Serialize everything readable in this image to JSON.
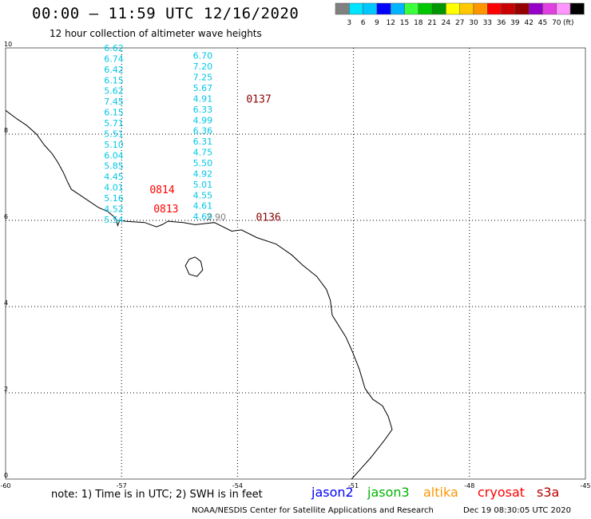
{
  "header": {
    "title": "00:00 – 11:59 UTC 12/16/2020",
    "subtitle": "12 hour collection of altimeter wave heights"
  },
  "legend": {
    "labels": [
      "3",
      "6",
      "9",
      "12",
      "15",
      "18",
      "21",
      "24",
      "27",
      "30",
      "33",
      "36",
      "39",
      "42",
      "45",
      "70"
    ],
    "unit": "(ft)",
    "colors": [
      "#808080",
      "#00e5ff",
      "#00c8ff",
      "#0000ff",
      "#00b4ff",
      "#3cff3c",
      "#00c800",
      "#009600",
      "#ffff00",
      "#ffc800",
      "#ff9600",
      "#ff0000",
      "#c80000",
      "#960000",
      "#9600c8",
      "#e040e0",
      "#ff96ff",
      "#000000"
    ]
  },
  "axes": {
    "x_ticks": [
      "-60",
      "-57",
      "-54",
      "-51",
      "-48",
      "-45"
    ],
    "y_ticks": [
      "0",
      "2",
      "4",
      "6",
      "8",
      "10"
    ],
    "x_values": [
      -60,
      -57,
      -54,
      -51,
      -48,
      -45
    ],
    "y_values": [
      0,
      2,
      4,
      6,
      8,
      10
    ]
  },
  "tracks": [
    {
      "lon": -57.2,
      "lat_start": 10.0,
      "lat_step": -0.2487,
      "color": "#00c8e6",
      "values": [
        "6.62",
        "6.74",
        "6.42",
        "6.15",
        "5.62",
        "7.45",
        "6.15",
        "5.71",
        "5.51",
        "5.10",
        "6.04",
        "5.85",
        "4.45",
        "4.01",
        "5.16",
        "4.52",
        "5.54"
      ]
    },
    {
      "lon": -54.9,
      "lat_start": 9.82,
      "lat_step": -0.2487,
      "color": "#00c8e6",
      "values": [
        "6.70",
        "7.20",
        "7.25",
        "5.67",
        "4.91",
        "6.33",
        "4.99",
        "6.36",
        "6.31",
        "4.75",
        "5.50",
        "4.92",
        "5.01",
        "4.55",
        "4.61",
        "4.69"
      ]
    }
  ],
  "gray_value": {
    "text": "2.90",
    "lon": -54.55,
    "lat": 6.08,
    "color": "#808080"
  },
  "pass_labels": [
    {
      "text": "0137",
      "lon": -53.45,
      "lat": 8.82,
      "color": "#8b0000"
    },
    {
      "text": "0814",
      "lon": -55.95,
      "lat": 6.72,
      "color": "#ff0000"
    },
    {
      "text": "0813",
      "lon": -55.85,
      "lat": 6.28,
      "color": "#ff0000"
    },
    {
      "text": "0136",
      "lon": -53.2,
      "lat": 6.08,
      "color": "#8b0000"
    }
  ],
  "coastline": [
    [
      -60.0,
      8.55
    ],
    [
      -59.7,
      8.35
    ],
    [
      -59.45,
      8.2
    ],
    [
      -59.2,
      8.0
    ],
    [
      -59.0,
      7.75
    ],
    [
      -58.8,
      7.55
    ],
    [
      -58.65,
      7.35
    ],
    [
      -58.5,
      7.1
    ],
    [
      -58.4,
      6.9
    ],
    [
      -58.3,
      6.72
    ],
    [
      -58.1,
      6.6
    ],
    [
      -57.85,
      6.45
    ],
    [
      -57.6,
      6.3
    ],
    [
      -57.35,
      6.2
    ],
    [
      -57.15,
      6.05
    ],
    [
      -57.1,
      5.88
    ],
    [
      -57.05,
      6.0
    ],
    [
      -56.9,
      5.98
    ],
    [
      -56.4,
      5.95
    ],
    [
      -56.1,
      5.85
    ],
    [
      -55.95,
      5.9
    ],
    [
      -55.8,
      5.98
    ],
    [
      -55.4,
      5.95
    ],
    [
      -55.1,
      5.9
    ],
    [
      -54.6,
      5.95
    ],
    [
      -54.15,
      5.75
    ],
    [
      -53.9,
      5.78
    ],
    [
      -53.5,
      5.6
    ],
    [
      -53.0,
      5.45
    ],
    [
      -52.6,
      5.2
    ],
    [
      -52.3,
      4.95
    ],
    [
      -51.95,
      4.7
    ],
    [
      -51.7,
      4.4
    ],
    [
      -51.6,
      4.15
    ],
    [
      -51.55,
      3.8
    ],
    [
      -51.2,
      3.3
    ],
    [
      -51.05,
      3.0
    ],
    [
      -50.85,
      2.55
    ],
    [
      -50.7,
      2.1
    ],
    [
      -50.5,
      1.85
    ],
    [
      -50.25,
      1.7
    ],
    [
      -50.1,
      1.45
    ],
    [
      -50.0,
      1.15
    ],
    [
      -50.2,
      0.9
    ],
    [
      -50.55,
      0.5
    ],
    [
      -50.85,
      0.2
    ],
    [
      -51.05,
      0.0
    ]
  ],
  "island": [
    [
      -55.35,
      4.95
    ],
    [
      -55.25,
      5.1
    ],
    [
      -55.1,
      5.15
    ],
    [
      -54.95,
      5.05
    ],
    [
      -54.9,
      4.85
    ],
    [
      -55.05,
      4.7
    ],
    [
      -55.25,
      4.75
    ],
    [
      -55.35,
      4.95
    ]
  ],
  "footer": {
    "note": "note: 1) Time is in UTC; 2) SWH is in feet",
    "satellites": [
      {
        "name": "jason2",
        "color": "#0000ff"
      },
      {
        "name": "jason3",
        "color": "#00b400"
      },
      {
        "name": "altika",
        "color": "#ff9600"
      },
      {
        "name": "cryosat",
        "color": "#ff0000"
      },
      {
        "name": "s3a",
        "color": "#b40000"
      }
    ],
    "credit": "NOAA/NESDIS Center for Satellite Applications and Research",
    "timestamp": "Dec 19 08:30:05 UTC 2020"
  }
}
